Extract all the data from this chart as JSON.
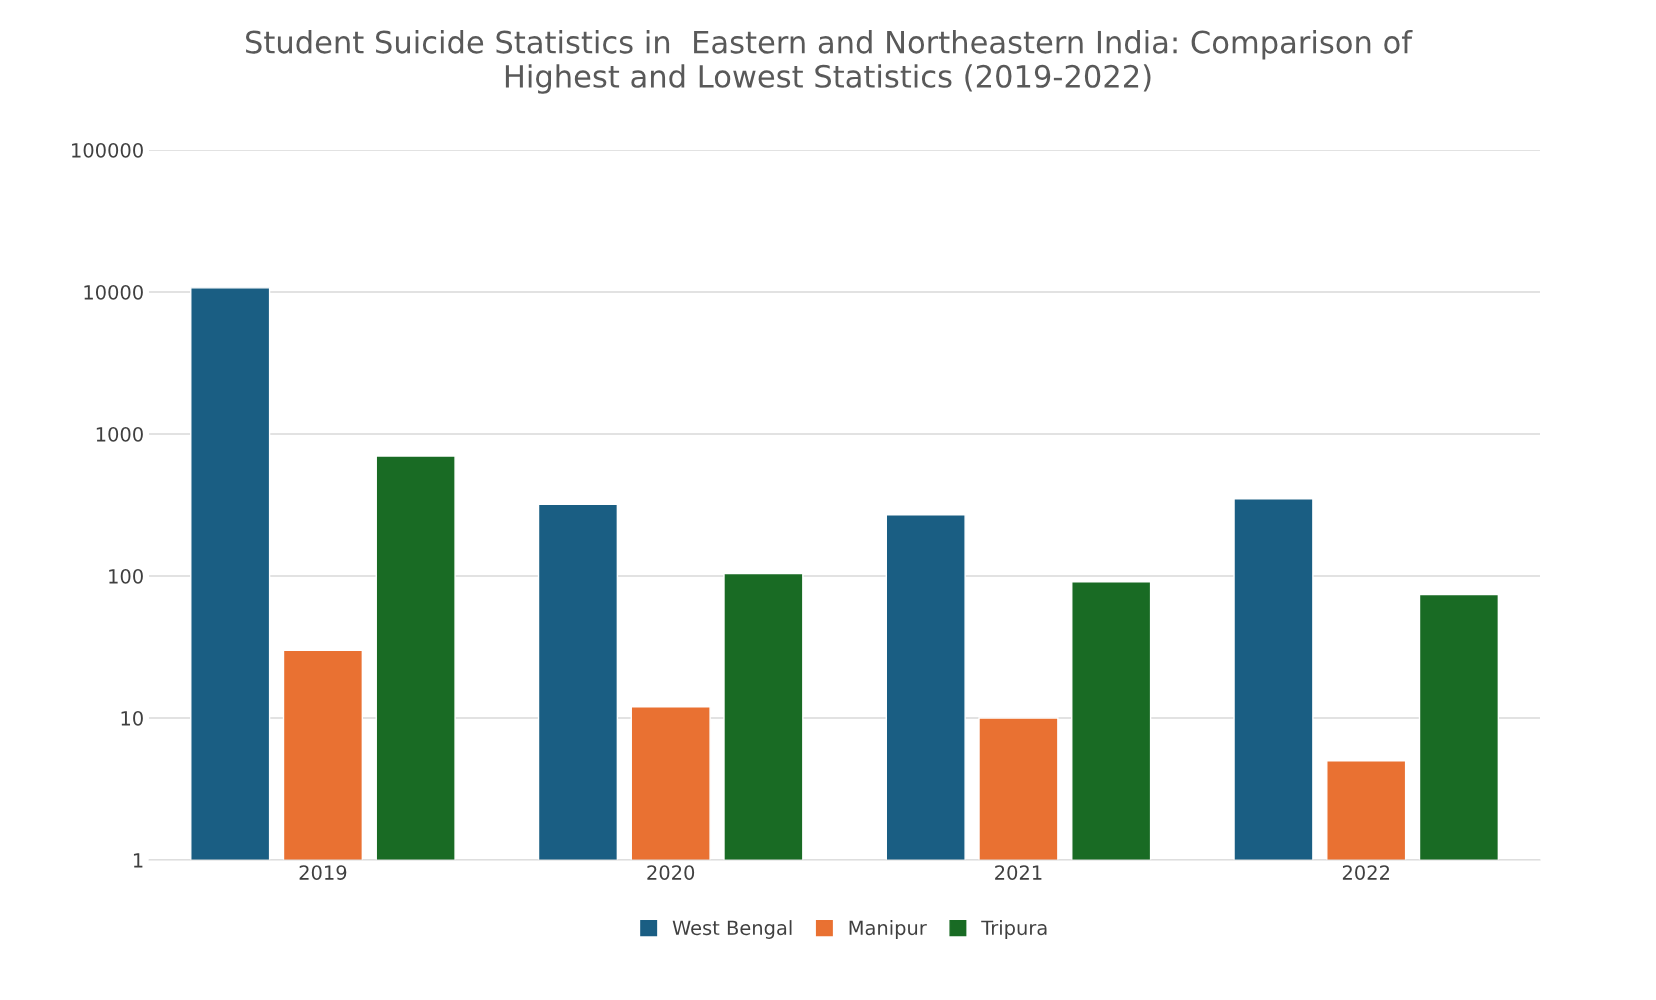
{
  "chart_data": {
    "type": "bar",
    "title": "Student Suicide Statistics in  Eastern and Northeastern India: Comparison of\nHighest and Lowest Statistics (2019-2022)",
    "categories": [
      "2019",
      "2020",
      "2021",
      "2022"
    ],
    "series": [
      {
        "name": "West Bengal",
        "color": "#1a5e83",
        "values": [
          10700,
          320,
          270,
          350
        ]
      },
      {
        "name": "Manipur",
        "color": "#e97132",
        "values": [
          30,
          12,
          10,
          5
        ]
      },
      {
        "name": "Tripura",
        "color": "#196b24",
        "values": [
          700,
          104,
          91,
          74
        ]
      }
    ],
    "log": true,
    "ylim": [
      1,
      100000
    ],
    "yticks": [
      1,
      10,
      100,
      1000,
      10000,
      100000
    ],
    "grid": "y",
    "legend": "bottom"
  }
}
